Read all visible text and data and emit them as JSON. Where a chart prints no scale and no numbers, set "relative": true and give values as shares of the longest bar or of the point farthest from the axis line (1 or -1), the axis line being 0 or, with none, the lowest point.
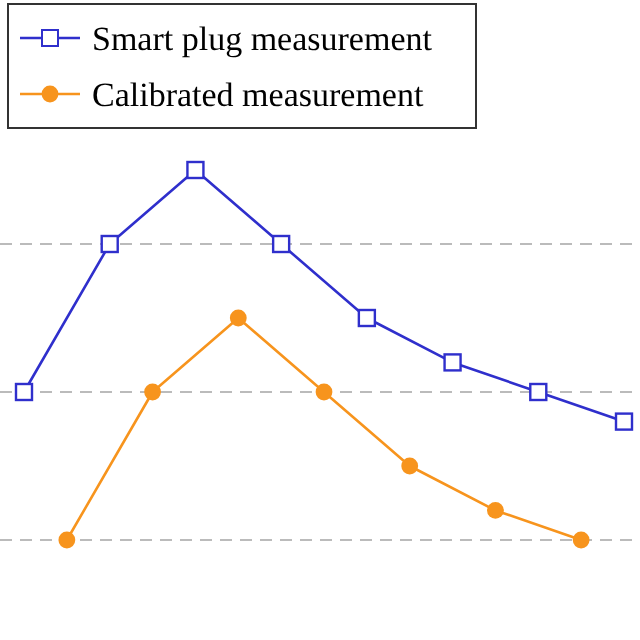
{
  "chart_data": {
    "type": "line",
    "relative": true,
    "categories": [
      null,
      null,
      null,
      null,
      null,
      null,
      null,
      null,
      null,
      null,
      null,
      null,
      null,
      null,
      null
    ],
    "legend": "top",
    "ref_lines": [
      {
        "axis": "y",
        "value": 0,
        "color": "#bbbbbb",
        "line_style": "dashed"
      },
      {
        "axis": "y",
        "value": 0.4,
        "color": "#bbbbbb",
        "line_style": "dashed"
      },
      {
        "axis": "y",
        "value": 0.8,
        "color": "#bbbbbb",
        "line_style": "dashed"
      }
    ],
    "series": [
      {
        "name": "Smart plug measurement",
        "color": "#2f2fcc",
        "marker": "square",
        "values": [
          0.4,
          null,
          0.8,
          null,
          1,
          null,
          0.8,
          null,
          0.6,
          null,
          0.48,
          null,
          0.4,
          null,
          0.32
        ]
      },
      {
        "name": "Calibrated measurement",
        "color": "#f7941d",
        "marker": "circle",
        "values": [
          null,
          0,
          null,
          0.4,
          null,
          0.6,
          null,
          0.4,
          null,
          0.2,
          null,
          0.08,
          null,
          0,
          null
        ]
      }
    ]
  }
}
